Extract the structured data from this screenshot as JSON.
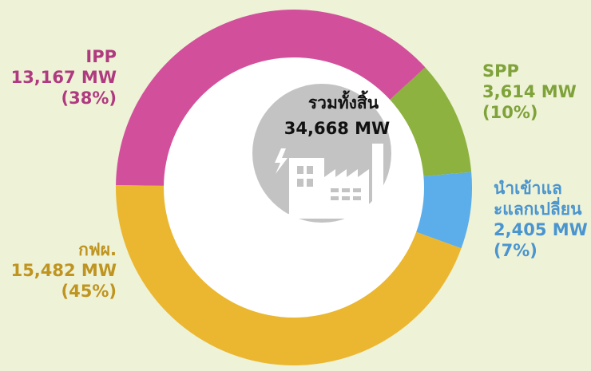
{
  "chart_data": {
    "type": "donut",
    "center_title": "รวมทั้งสิ้น",
    "center_total": "34,668 MW",
    "categories": [
      "SPP",
      "นำเข้าและแลกเปลี่ยน",
      "กฟผ.",
      "IPP"
    ],
    "values": [
      3614,
      2405,
      15482,
      13167
    ],
    "value_labels": [
      "3,614 MW",
      "2,405 MW",
      "15,482 MW",
      "13,167 MW"
    ],
    "percent_labels": [
      "(10%)",
      "(7%)",
      "(45%)",
      "(38%)"
    ],
    "colors": [
      "#8db23f",
      "#5caeea",
      "#ebb731",
      "#d2509b"
    ],
    "label_colors": [
      "#7fa23a",
      "#4a95cf",
      "#bf9420",
      "#b03a80"
    ]
  }
}
